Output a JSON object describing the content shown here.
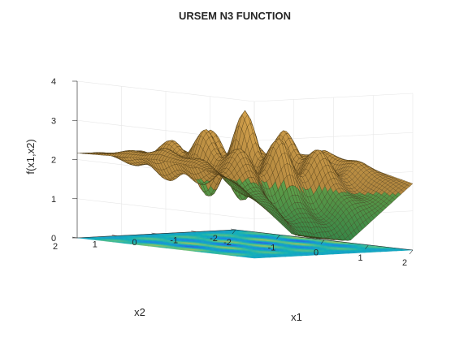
{
  "chart_data": {
    "type": "surface",
    "title": "URSEM N3 FUNCTION",
    "xlabel": "x1",
    "ylabel": "x2",
    "zlabel": "f(x1,x2)",
    "x_range": [
      -2,
      2
    ],
    "y_range": [
      -2,
      2
    ],
    "z_range": [
      0,
      4
    ],
    "x_ticks": [
      "-2",
      "-1",
      "0",
      "1",
      "2"
    ],
    "y_ticks": [
      "-2",
      "-1",
      "0",
      "1",
      "2"
    ],
    "z_ticks": [
      "0",
      "1",
      "2",
      "3",
      "4"
    ],
    "grid": true,
    "contour_projection": true,
    "grid_resolution": 60,
    "colormap": "parula",
    "surface_lighting": "copper",
    "sample_points": [
      {
        "x1": 0,
        "x2": 0,
        "f": 3.0
      },
      {
        "x1": 0,
        "x2": -2,
        "f": 0.1
      },
      {
        "x1": 2,
        "x2": 2,
        "f": 3.6
      },
      {
        "x1": -2,
        "x2": -2,
        "f": 2.7
      },
      {
        "x1": -2,
        "x2": 2,
        "f": 2.7
      },
      {
        "x1": 2,
        "x2": -2,
        "f": 2.5
      }
    ]
  }
}
